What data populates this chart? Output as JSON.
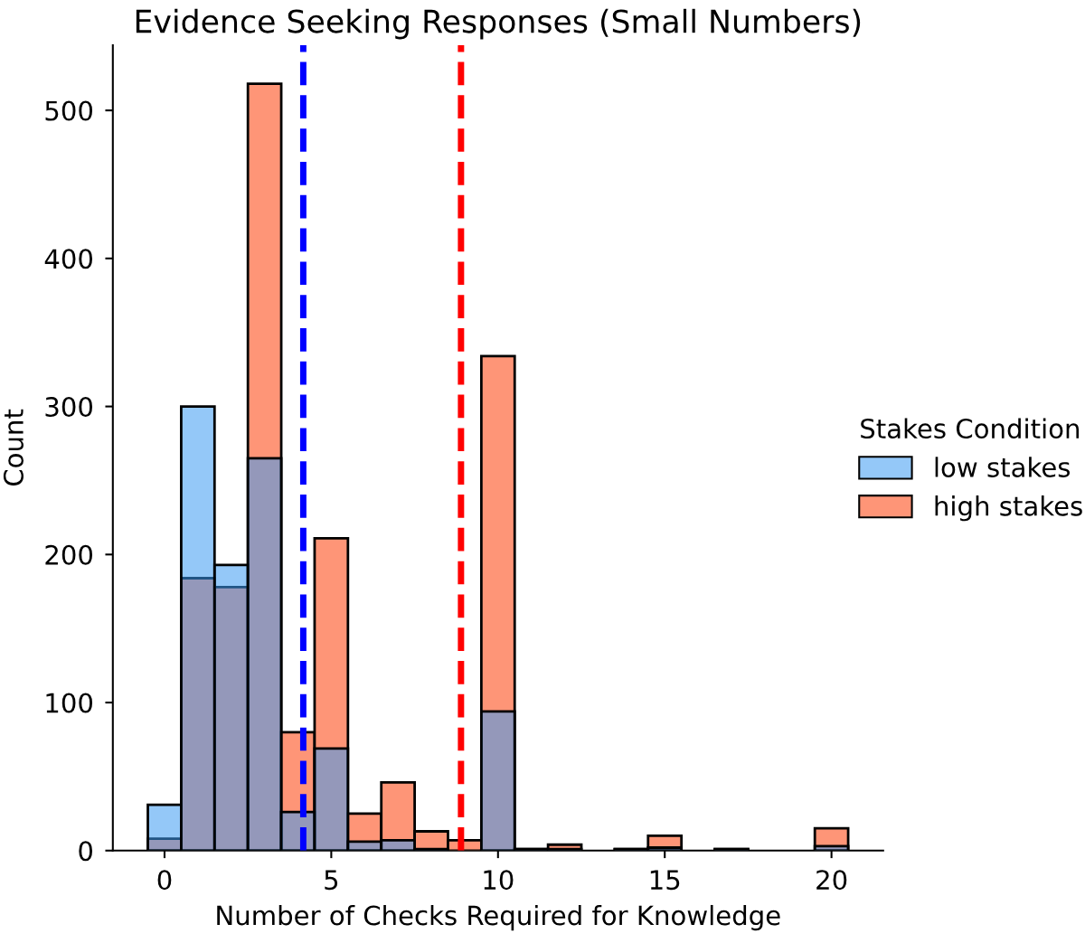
{
  "chart_data": {
    "type": "histogram",
    "title": "Evidence Seeking Responses (Small Numbers)",
    "xlabel": "Number of Checks Required for Knowledge",
    "ylabel": "Count",
    "legend_title": "Stakes Condition",
    "bins": [
      -0.5,
      0.5,
      1.5,
      2.5,
      3.5,
      4.5,
      5.5,
      6.5,
      7.5,
      8.5,
      9.5,
      10.5,
      11.5,
      12.5,
      13.5,
      14.5,
      15.5,
      16.5,
      17.5,
      18.5,
      19.5,
      20.5
    ],
    "series": [
      {
        "name": "low stakes",
        "color": "#94c8f8",
        "values": [
          31,
          300,
          193,
          265,
          26,
          69,
          6,
          7,
          1,
          0,
          94,
          1,
          1,
          0,
          1,
          2,
          0,
          1,
          0,
          0,
          3
        ]
      },
      {
        "name": "high stakes",
        "color": "#fe9577",
        "values": [
          8,
          184,
          178,
          518,
          80,
          211,
          25,
          46,
          13,
          7,
          334,
          1,
          4,
          0,
          1,
          10,
          0,
          1,
          0,
          0,
          15
        ]
      }
    ],
    "ref_lines": [
      {
        "axis": "x",
        "value": 4.16,
        "color": "#0000ff",
        "line_style": "dashed"
      },
      {
        "axis": "x",
        "value": 8.89,
        "color": "#ff0000",
        "line_style": "dashed"
      }
    ],
    "xlim": [
      -1.55,
      21.55
    ],
    "ylim": [
      0,
      544
    ],
    "xticks": [
      0,
      5,
      10,
      15,
      20
    ],
    "yticks": [
      0,
      100,
      200,
      300,
      400,
      500
    ],
    "legend": "right",
    "grid": false
  }
}
